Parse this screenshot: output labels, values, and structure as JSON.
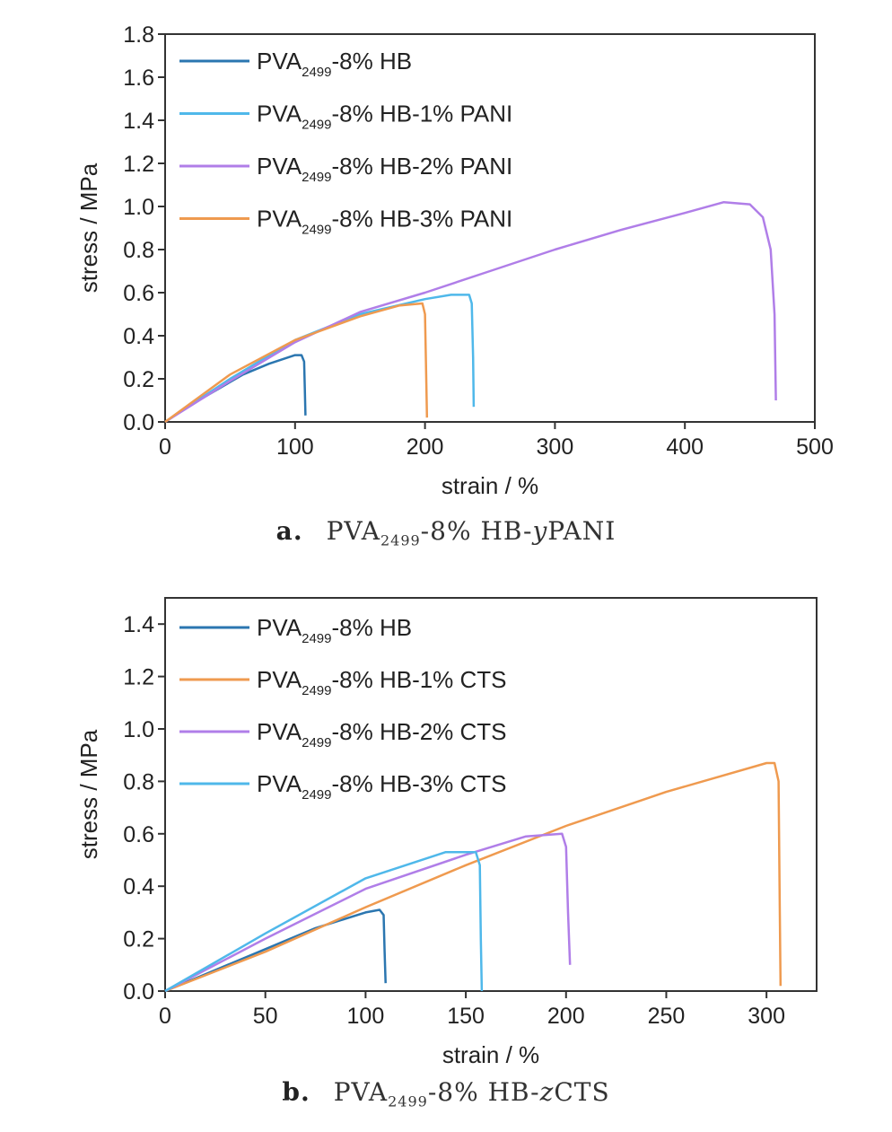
{
  "colors": {
    "dark_blue": "#2b76b0",
    "light_blue": "#4fb8ea",
    "purple": "#b07ee8",
    "orange": "#ef9a4f"
  },
  "captions": [
    {
      "tag": "a.",
      "prefix": "PVA",
      "sub": "2499",
      "mid": "-8% HB-",
      "var": "y",
      "suffix": "PANI"
    },
    {
      "tag": "b.",
      "prefix": "PVA",
      "sub": "2499",
      "mid": "-8% HB-",
      "var": "z",
      "suffix": "CTS"
    }
  ],
  "chart_data": [
    {
      "type": "line",
      "xlabel": "strain / %",
      "ylabel": "stress / MPa",
      "xlim": [
        0,
        500
      ],
      "ylim": [
        0,
        1.8
      ],
      "xticks": [
        "0",
        "100",
        "200",
        "300",
        "400",
        "500"
      ],
      "yticks": [
        "0.0",
        "0.2",
        "0.4",
        "0.6",
        "0.8",
        "1.0",
        "1.2",
        "1.4",
        "1.6",
        "1.8"
      ],
      "legend_position": "top-left",
      "series": [
        {
          "name": "PVA2499-8% HB",
          "color": "#2b76b0",
          "legend": {
            "pre": "PVA",
            "sub": "2499",
            "post": "-8% HB"
          },
          "points": [
            [
              0,
              0
            ],
            [
              20,
              0.08
            ],
            [
              40,
              0.15
            ],
            [
              60,
              0.22
            ],
            [
              80,
              0.27
            ],
            [
              100,
              0.31
            ],
            [
              105,
              0.31
            ],
            [
              107,
              0.28
            ],
            [
              107.5,
              0.15
            ],
            [
              108,
              0.03
            ]
          ]
        },
        {
          "name": "PVA2499-8% HB-1% PANI",
          "color": "#4fb8ea",
          "legend": {
            "pre": "PVA",
            "sub": "2499",
            "post": "-8% HB-1% PANI"
          },
          "points": [
            [
              0,
              0
            ],
            [
              50,
              0.2
            ],
            [
              100,
              0.38
            ],
            [
              150,
              0.5
            ],
            [
              200,
              0.57
            ],
            [
              220,
              0.59
            ],
            [
              234,
              0.59
            ],
            [
              236,
              0.55
            ],
            [
              237,
              0.3
            ],
            [
              237.5,
              0.07
            ]
          ]
        },
        {
          "name": "PVA2499-8% HB-2% PANI",
          "color": "#b07ee8",
          "legend": {
            "pre": "PVA",
            "sub": "2499",
            "post": "-8% HB-2% PANI"
          },
          "points": [
            [
              0,
              0
            ],
            [
              50,
              0.19
            ],
            [
              100,
              0.37
            ],
            [
              150,
              0.51
            ],
            [
              200,
              0.6
            ],
            [
              250,
              0.7
            ],
            [
              300,
              0.8
            ],
            [
              350,
              0.89
            ],
            [
              400,
              0.97
            ],
            [
              430,
              1.02
            ],
            [
              450,
              1.01
            ],
            [
              460,
              0.95
            ],
            [
              466,
              0.8
            ],
            [
              469,
              0.5
            ],
            [
              470,
              0.1
            ]
          ]
        },
        {
          "name": "PVA2499-8% HB-3% PANI",
          "color": "#ef9a4f",
          "legend": {
            "pre": "PVA",
            "sub": "2499",
            "post": "-8% HB-3% PANI"
          },
          "points": [
            [
              0,
              0
            ],
            [
              50,
              0.22
            ],
            [
              100,
              0.38
            ],
            [
              150,
              0.49
            ],
            [
              180,
              0.54
            ],
            [
              198,
              0.55
            ],
            [
              200,
              0.5
            ],
            [
              201,
              0.2
            ],
            [
              201.5,
              0.02
            ]
          ]
        }
      ]
    },
    {
      "type": "line",
      "xlabel": "strain / %",
      "ylabel": "stress / MPa",
      "xlim": [
        0,
        325
      ],
      "ylim": [
        0,
        1.5
      ],
      "xticks": [
        "0",
        "50",
        "100",
        "150",
        "200",
        "250",
        "300"
      ],
      "yticks": [
        "0.0",
        "0.2",
        "0.4",
        "0.6",
        "0.8",
        "1.0",
        "1.2",
        "1.4"
      ],
      "legend_position": "top-left",
      "series": [
        {
          "name": "PVA2499-8% HB",
          "color": "#2b76b0",
          "legend": {
            "pre": "PVA",
            "sub": "2499",
            "post": "-8% HB"
          },
          "points": [
            [
              0,
              0
            ],
            [
              25,
              0.08
            ],
            [
              50,
              0.16
            ],
            [
              75,
              0.24
            ],
            [
              100,
              0.3
            ],
            [
              107,
              0.31
            ],
            [
              109,
              0.29
            ],
            [
              109.5,
              0.15
            ],
            [
              110,
              0.03
            ]
          ]
        },
        {
          "name": "PVA2499-8% HB-1% CTS",
          "color": "#ef9a4f",
          "legend": {
            "pre": "PVA",
            "sub": "2499",
            "post": "-8% HB-1% CTS"
          },
          "points": [
            [
              0,
              0
            ],
            [
              50,
              0.15
            ],
            [
              100,
              0.32
            ],
            [
              150,
              0.48
            ],
            [
              200,
              0.63
            ],
            [
              250,
              0.76
            ],
            [
              300,
              0.87
            ],
            [
              304,
              0.87
            ],
            [
              306,
              0.8
            ],
            [
              306.5,
              0.4
            ],
            [
              307,
              0.02
            ]
          ]
        },
        {
          "name": "PVA2499-8% HB-2% CTS",
          "color": "#b07ee8",
          "legend": {
            "pre": "PVA",
            "sub": "2499",
            "post": "-8% HB-2% CTS"
          },
          "points": [
            [
              0,
              0
            ],
            [
              50,
              0.2
            ],
            [
              100,
              0.39
            ],
            [
              150,
              0.52
            ],
            [
              180,
              0.59
            ],
            [
              198,
              0.6
            ],
            [
              200,
              0.55
            ],
            [
              201,
              0.3
            ],
            [
              202,
              0.1
            ]
          ]
        },
        {
          "name": "PVA2499-8% HB-3% CTS",
          "color": "#4fb8ea",
          "legend": {
            "pre": "PVA",
            "sub": "2499",
            "post": "-8% HB-3% CTS"
          },
          "points": [
            [
              0,
              0
            ],
            [
              50,
              0.22
            ],
            [
              100,
              0.43
            ],
            [
              140,
              0.53
            ],
            [
              155,
              0.53
            ],
            [
              157,
              0.48
            ],
            [
              157.5,
              0.2
            ],
            [
              158,
              0.0
            ]
          ]
        }
      ]
    }
  ]
}
